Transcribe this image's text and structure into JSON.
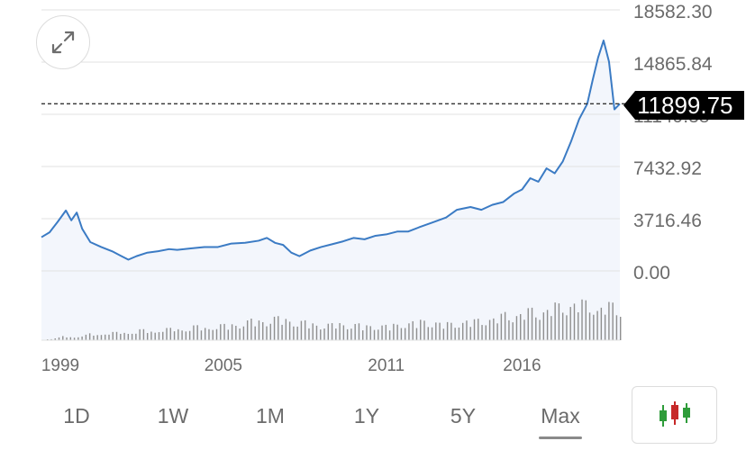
{
  "chart_data": {
    "type": "line",
    "ylim": [
      0,
      16500
    ],
    "grid": true,
    "y_ticks": [
      {
        "value": 0,
        "label": "0.00"
      },
      {
        "value": 3716.46,
        "label": "3716.46"
      },
      {
        "value": 7432.92,
        "label": "7432.92"
      },
      {
        "value": 11149.38,
        "label": "11149.38"
      },
      {
        "value": 14865.84,
        "label": "14865.84"
      },
      {
        "value": 18582.3,
        "label": "18582.30"
      }
    ],
    "x_ticks": [
      {
        "value": 1999.0,
        "label": "1999"
      },
      {
        "value": 2005.0,
        "label": "2005"
      },
      {
        "value": 2011.0,
        "label": "2011"
      },
      {
        "value": 2016.0,
        "label": "2016"
      }
    ],
    "xlim": [
      1999.0,
      2020.3
    ],
    "current_price": 11899.75,
    "current_price_label": "11899.75",
    "x": [
      1999.0,
      1999.3,
      1999.6,
      1999.9,
      2000.1,
      2000.3,
      2000.5,
      2000.8,
      2001.2,
      2001.6,
      2001.9,
      2002.2,
      2002.5,
      2002.9,
      2003.3,
      2003.7,
      2004.0,
      2004.5,
      2005.0,
      2005.5,
      2006.0,
      2006.5,
      2007.0,
      2007.3,
      2007.6,
      2007.9,
      2008.2,
      2008.5,
      2008.9,
      2009.3,
      2009.7,
      2010.1,
      2010.5,
      2010.9,
      2011.3,
      2011.7,
      2012.1,
      2012.5,
      2012.9,
      2013.4,
      2013.9,
      2014.3,
      2014.8,
      2015.2,
      2015.6,
      2016.0,
      2016.4,
      2016.7,
      2017.0,
      2017.3,
      2017.6,
      2017.9,
      2018.2,
      2018.5,
      2018.8,
      2019.1,
      2019.3,
      2019.5,
      2019.7,
      2019.9,
      2020.1,
      2020.3
    ],
    "y": [
      2400,
      2750,
      3500,
      4300,
      3600,
      4150,
      3000,
      2050,
      1700,
      1400,
      1100,
      800,
      1050,
      1300,
      1400,
      1550,
      1500,
      1600,
      1700,
      1700,
      1950,
      2000,
      2150,
      2350,
      2000,
      1850,
      1300,
      1050,
      1450,
      1700,
      1900,
      2100,
      2350,
      2250,
      2500,
      2600,
      2800,
      2800,
      3100,
      3450,
      3800,
      4350,
      4550,
      4350,
      4700,
      4900,
      5500,
      5800,
      6600,
      6350,
      7300,
      6950,
      7800,
      9200,
      10800,
      11900,
      13600,
      15200,
      16400,
      14900,
      11500,
      11899.75
    ],
    "volume": [
      1,
      2,
      3,
      3,
      4,
      5,
      6,
      6,
      7,
      7,
      8,
      8,
      9,
      9,
      10,
      10,
      11,
      11,
      12,
      12,
      14,
      15,
      16,
      17,
      18,
      18,
      17,
      15,
      14,
      13,
      13,
      14,
      13,
      13,
      12,
      12,
      12,
      13,
      14,
      15,
      16,
      15,
      14,
      14,
      15,
      16,
      17,
      18,
      20,
      22,
      22,
      24,
      25,
      26,
      28,
      30,
      32,
      30,
      30,
      29,
      28,
      27
    ]
  },
  "price_tag": "11899.75",
  "controls": {
    "ranges": [
      {
        "label": "1D",
        "active": false
      },
      {
        "label": "1W",
        "active": false
      },
      {
        "label": "1M",
        "active": false
      },
      {
        "label": "1Y",
        "active": false
      },
      {
        "label": "5Y",
        "active": false
      },
      {
        "label": "Max",
        "active": true
      }
    ]
  },
  "colors": {
    "line": "#3b7bc4",
    "area": "#f3f6fc",
    "grid": "#e2e2e2",
    "tick_text": "#6b6b6b",
    "volume": "#8f8f8f",
    "candle_green": "#2e9c3a",
    "candle_red": "#c62828"
  },
  "icons": {
    "expand": "expand-icon",
    "candlestick": "candlestick-chart-icon"
  }
}
